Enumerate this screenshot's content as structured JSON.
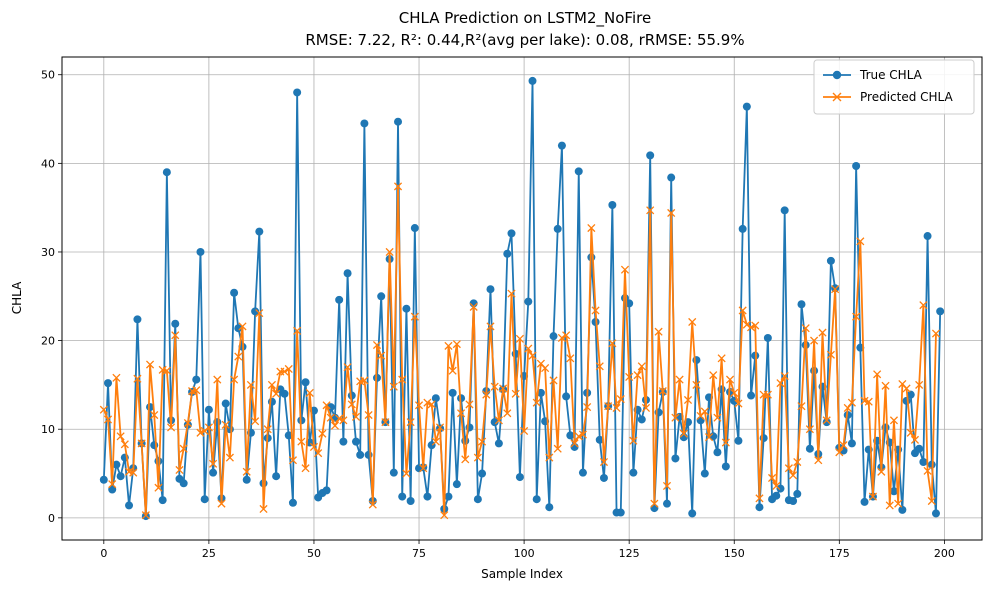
{
  "chart_data": {
    "type": "line",
    "title_line1": "CHLA Prediction on LSTM2_NoFire",
    "title_line2": "RMSE: 7.22, R²: 0.44,R²(avg per lake): 0.08, rRMSE: 55.9%",
    "xlabel": "Sample Index",
    "ylabel": "CHLA",
    "xlim": [
      -9.95,
      208.95
    ],
    "ylim": [
      -2.5,
      52
    ],
    "xticks": [
      0,
      25,
      50,
      75,
      100,
      125,
      150,
      175,
      200
    ],
    "yticks": [
      0,
      10,
      20,
      30,
      40,
      50
    ],
    "grid": true,
    "legend_position": "top-right",
    "series": [
      {
        "name": "True CHLA",
        "color": "#1f77b4",
        "marker": "circle",
        "values": [
          4.3,
          15.2,
          3.2,
          6.0,
          4.7,
          6.8,
          1.4,
          5.6,
          22.4,
          8.4,
          0.2,
          12.5,
          8.2,
          6.4,
          2.0,
          39.0,
          11.0,
          21.9,
          4.4,
          3.9,
          10.5,
          14.2,
          15.6,
          30.0,
          2.1,
          12.2,
          5.1,
          10.8,
          2.2,
          12.9,
          10.0,
          25.4,
          21.4,
          19.3,
          4.3,
          9.6,
          23.3,
          32.3,
          3.9,
          9.0,
          13.1,
          4.7,
          14.5,
          14.0,
          9.3,
          1.7,
          48.0,
          11.0,
          15.3,
          8.5,
          12.1,
          2.3,
          2.8,
          3.1,
          12.5,
          11.3,
          24.6,
          8.6,
          27.6,
          13.8,
          8.6,
          7.1,
          44.5,
          7.1,
          1.9,
          15.8,
          25.0,
          10.8,
          29.2,
          5.1,
          44.7,
          2.4,
          23.6,
          1.9,
          32.7,
          5.6,
          5.7,
          2.4,
          8.2,
          13.5,
          10.1,
          1.0,
          2.4,
          14.1,
          3.8,
          13.5,
          8.7,
          10.2,
          24.2,
          2.1,
          5.0,
          14.3,
          25.8,
          10.8,
          8.4,
          14.5,
          29.8,
          32.1,
          18.5,
          4.6,
          16.0,
          24.4,
          49.3,
          2.1,
          14.1,
          10.9,
          1.2,
          20.5,
          32.6,
          42.0,
          13.7,
          9.3,
          8.0,
          39.1,
          5.1,
          14.1,
          29.4,
          22.1,
          8.8,
          4.5,
          12.6,
          35.3,
          0.6,
          0.6,
          24.8,
          24.2,
          5.1,
          12.2,
          11.1,
          13.3,
          40.9,
          1.1,
          11.9,
          14.2,
          1.6,
          38.4,
          6.7,
          11.4,
          9.1,
          10.8,
          0.5,
          17.8,
          11.0,
          5.0,
          13.6,
          9.2,
          7.4,
          14.5,
          5.8,
          14.2,
          13.2,
          8.7,
          32.6,
          46.4,
          13.8,
          18.3,
          1.2,
          9.0,
          20.3,
          2.1,
          2.5,
          3.3,
          34.7,
          2.0,
          1.9,
          2.7,
          24.1,
          19.5,
          7.8,
          16.6,
          7.2,
          14.8,
          10.8,
          29.0,
          25.9,
          7.9,
          7.6,
          11.6,
          8.4,
          39.7,
          19.2,
          1.8,
          7.7,
          2.4,
          8.7,
          5.7,
          10.2,
          8.5,
          3.0,
          7.7,
          0.9,
          13.2,
          13.9,
          7.3,
          7.8,
          6.3,
          31.8,
          6.0,
          0.5,
          23.3
        ]
      },
      {
        "name": "Predicted CHLA",
        "color": "#ff7f0e",
        "marker": "x",
        "values": [
          12.2,
          11.1,
          3.8,
          15.8,
          9.2,
          8.3,
          5.2,
          5.1,
          15.7,
          8.4,
          0.3,
          17.3,
          11.6,
          3.4,
          16.7,
          16.6,
          10.2,
          20.6,
          5.4,
          7.8,
          10.7,
          14.3,
          14.4,
          9.6,
          9.8,
          10.2,
          6.1,
          15.6,
          1.6,
          10.5,
          6.8,
          15.6,
          18.2,
          21.6,
          5.2,
          15.0,
          10.9,
          23.1,
          1.0,
          10.0,
          15.0,
          14.0,
          16.5,
          16.5,
          16.8,
          6.5,
          21.1,
          8.6,
          5.6,
          14.1,
          8.0,
          7.3,
          9.5,
          12.7,
          11.3,
          10.4,
          11.2,
          11.0,
          17.0,
          12.8,
          11.4,
          15.4,
          15.5,
          11.6,
          1.5,
          19.5,
          18.3,
          10.8,
          30.0,
          14.8,
          37.4,
          15.6,
          5.0,
          10.8,
          22.7,
          12.7,
          5.6,
          13.0,
          12.8,
          8.6,
          10.2,
          0.3,
          19.4,
          16.6,
          19.6,
          11.8,
          6.6,
          12.8,
          23.8,
          6.8,
          8.6,
          13.9,
          21.6,
          14.8,
          11.0,
          14.6,
          11.8,
          25.3,
          14.0,
          20.2,
          9.8,
          19.1,
          18.3,
          13.0,
          17.4,
          16.9,
          6.8,
          15.5,
          7.8,
          20.3,
          20.6,
          18.0,
          8.4,
          9.2,
          9.4,
          12.5,
          32.7,
          23.4,
          17.1,
          6.3,
          12.6,
          19.7,
          12.4,
          13.4,
          28.0,
          15.9,
          8.7,
          16.1,
          17.1,
          12.4,
          34.7,
          1.6,
          21.0,
          14.3,
          3.6,
          34.4,
          11.3,
          15.6,
          9.5,
          13.3,
          22.1,
          15.0,
          11.5,
          12.0,
          9.1,
          16.1,
          11.3,
          18.0,
          8.5,
          15.6,
          14.1,
          12.9,
          23.4,
          21.8,
          21.5,
          21.7,
          2.2,
          13.9,
          13.9,
          4.5,
          3.6,
          15.2,
          16.0,
          5.6,
          4.8,
          6.3,
          12.6,
          21.4,
          10.0,
          20.0,
          6.5,
          20.9,
          11.0,
          18.4,
          25.8,
          7.4,
          8.2,
          12.4,
          13.0,
          22.7,
          31.2,
          13.2,
          13.1,
          2.4,
          16.2,
          5.2,
          14.9,
          1.4,
          11.0,
          1.6,
          15.1,
          14.6,
          9.6,
          8.8,
          15.0,
          24.0,
          5.3,
          1.9,
          20.8
        ]
      }
    ]
  }
}
